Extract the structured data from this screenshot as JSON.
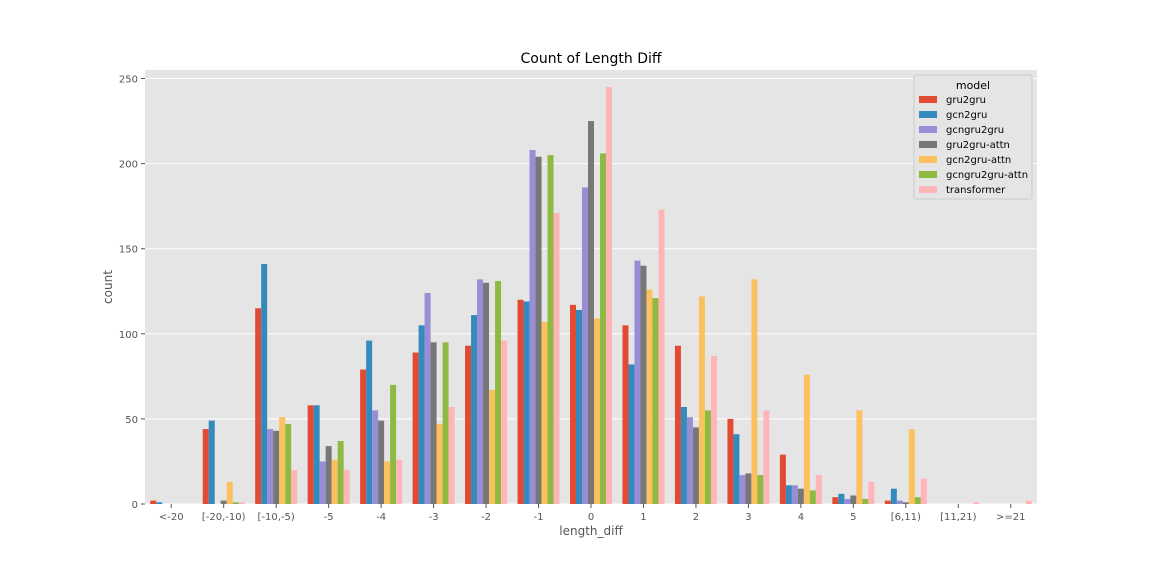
{
  "chart_data": {
    "type": "bar",
    "title": "Count of Length Diff",
    "xlabel": "length_diff",
    "ylabel": "count",
    "ylim": [
      0,
      255
    ],
    "yticks": [
      0,
      50,
      100,
      150,
      200,
      250
    ],
    "grid": true,
    "legend_title": "model",
    "legend_position": "top-right",
    "categories": [
      "<-20",
      "[-20,-10)",
      "[-10,-5)",
      "-5",
      "-4",
      "-3",
      "-2",
      "-1",
      "0",
      "1",
      "2",
      "3",
      "4",
      "5",
      "[6,11)",
      "[11,21)",
      ">=21"
    ],
    "series": [
      {
        "name": "gru2gru",
        "color": "#e24a33",
        "values": [
          2,
          44,
          115,
          58,
          79,
          89,
          93,
          120,
          117,
          105,
          93,
          50,
          29,
          4,
          2,
          0,
          0
        ]
      },
      {
        "name": "gcn2gru",
        "color": "#348abd",
        "values": [
          1,
          49,
          141,
          58,
          96,
          105,
          111,
          119,
          114,
          82,
          57,
          41,
          11,
          6,
          9,
          0,
          0
        ]
      },
      {
        "name": "gcngru2gru",
        "color": "#988ed5",
        "values": [
          0,
          0,
          44,
          25,
          55,
          124,
          132,
          208,
          186,
          143,
          51,
          17,
          11,
          3,
          2,
          0,
          0
        ]
      },
      {
        "name": "gru2gru-attn",
        "color": "#777777",
        "values": [
          0,
          2,
          43,
          34,
          49,
          95,
          130,
          204,
          225,
          140,
          45,
          18,
          9,
          5,
          1,
          0,
          0
        ]
      },
      {
        "name": "gcn2gru-attn",
        "color": "#fbc15e",
        "values": [
          0,
          13,
          51,
          26,
          25,
          47,
          67,
          107,
          109,
          126,
          122,
          132,
          76,
          55,
          44,
          0,
          0
        ]
      },
      {
        "name": "gcngru2gru-attn",
        "color": "#8eba42",
        "values": [
          0,
          1,
          47,
          37,
          70,
          95,
          131,
          205,
          206,
          121,
          55,
          17,
          8,
          3,
          4,
          0,
          0
        ]
      },
      {
        "name": "transformer",
        "color": "#ffb5b8",
        "values": [
          0,
          1,
          20,
          20,
          26,
          57,
          96,
          171,
          245,
          173,
          87,
          55,
          17,
          13,
          15,
          1,
          2
        ]
      }
    ]
  }
}
